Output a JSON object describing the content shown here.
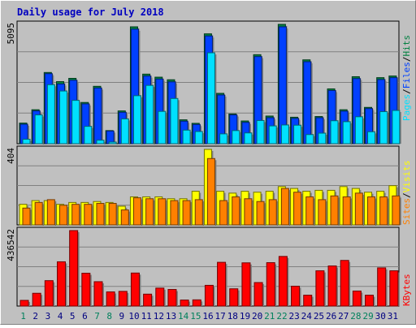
{
  "title": "Daily usage for July 2018",
  "colors": {
    "background": "#C0C0C0",
    "title": "#0000C0",
    "hits": "#008040",
    "files": "#0040FF",
    "pages": "#00E0FF",
    "visits": "#FFFF00",
    "sites": "#FF8000",
    "kbytes": "#FF0000",
    "weekend_day_label": "#00805C",
    "weekday_label": "#000080"
  },
  "chart_data": [
    {
      "type": "bar",
      "panel": "hits-files-pages",
      "legend": [
        "Pages",
        "Files",
        "Hits"
      ],
      "y_max_label": "5095",
      "ylim": [
        0,
        5095
      ],
      "categories": [
        "1",
        "2",
        "3",
        "4",
        "5",
        "6",
        "7",
        "8",
        "9",
        "10",
        "11",
        "12",
        "13",
        "14",
        "15",
        "16",
        "17",
        "18",
        "19",
        "20",
        "21",
        "22",
        "23",
        "24",
        "25",
        "26",
        "27",
        "28",
        "29",
        "30",
        "31"
      ],
      "series": [
        {
          "name": "Hits",
          "values": [
            880,
            1450,
            3040,
            2650,
            2790,
            1760,
            2450,
            560,
            1400,
            4990,
            2970,
            2840,
            2730,
            1020,
            870,
            4690,
            2150,
            1270,
            970,
            3800,
            1180,
            5095,
            1130,
            3580,
            1160,
            2340,
            1450,
            2860,
            1550,
            2820,
            2890
          ]
        },
        {
          "name": "Files",
          "values": [
            830,
            1400,
            2990,
            2550,
            2710,
            1700,
            2380,
            540,
            1340,
            4890,
            2890,
            2760,
            2640,
            960,
            820,
            4600,
            2080,
            1230,
            910,
            3720,
            1110,
            4990,
            1080,
            3500,
            1110,
            2270,
            1390,
            2780,
            1500,
            2740,
            2820
          ]
        },
        {
          "name": "Pages",
          "values": [
            190,
            1230,
            2520,
            2250,
            1850,
            740,
            150,
            70,
            1060,
            2050,
            2490,
            1380,
            1930,
            580,
            520,
            3880,
            420,
            560,
            460,
            990,
            760,
            800,
            790,
            390,
            450,
            980,
            940,
            1150,
            510,
            1370,
            1420
          ]
        }
      ]
    },
    {
      "type": "bar",
      "panel": "visits-sites",
      "legend": [
        "Sites",
        "Visits"
      ],
      "y_max_label": "404",
      "ylim": [
        0,
        404
      ],
      "categories": [
        "1",
        "2",
        "3",
        "4",
        "5",
        "6",
        "7",
        "8",
        "9",
        "10",
        "11",
        "12",
        "13",
        "14",
        "15",
        "16",
        "17",
        "18",
        "19",
        "20",
        "21",
        "22",
        "23",
        "24",
        "25",
        "26",
        "27",
        "28",
        "29",
        "30",
        "31"
      ],
      "series": [
        {
          "name": "Visits",
          "values": [
            110,
            130,
            130,
            110,
            120,
            120,
            125,
            120,
            100,
            150,
            150,
            150,
            140,
            140,
            180,
            404,
            180,
            170,
            180,
            175,
            180,
            205,
            195,
            180,
            185,
            185,
            205,
            195,
            175,
            180,
            210
          ]
        },
        {
          "name": "Sites",
          "values": [
            90,
            120,
            135,
            105,
            110,
            110,
            115,
            115,
            80,
            145,
            140,
            140,
            130,
            130,
            135,
            355,
            130,
            150,
            140,
            125,
            135,
            195,
            175,
            150,
            135,
            155,
            150,
            170,
            150,
            150,
            155
          ]
        }
      ]
    },
    {
      "type": "bar",
      "panel": "kbytes",
      "legend": [
        "KBytes"
      ],
      "y_max_label": "436542",
      "ylim": [
        0,
        436542
      ],
      "categories": [
        "1",
        "2",
        "3",
        "4",
        "5",
        "6",
        "7",
        "8",
        "9",
        "10",
        "11",
        "12",
        "13",
        "14",
        "15",
        "16",
        "17",
        "18",
        "19",
        "20",
        "21",
        "22",
        "23",
        "24",
        "25",
        "26",
        "27",
        "28",
        "29",
        "30",
        "31"
      ],
      "series": [
        {
          "name": "KBytes",
          "values": [
            33000,
            74000,
            147000,
            256000,
            436542,
            190000,
            141000,
            82000,
            85000,
            191000,
            69000,
            104000,
            96000,
            35000,
            36000,
            120000,
            253000,
            100000,
            250000,
            136000,
            251000,
            287000,
            115000,
            63000,
            204000,
            232000,
            264000,
            87000,
            63000,
            221000,
            204000
          ]
        }
      ]
    }
  ]
}
